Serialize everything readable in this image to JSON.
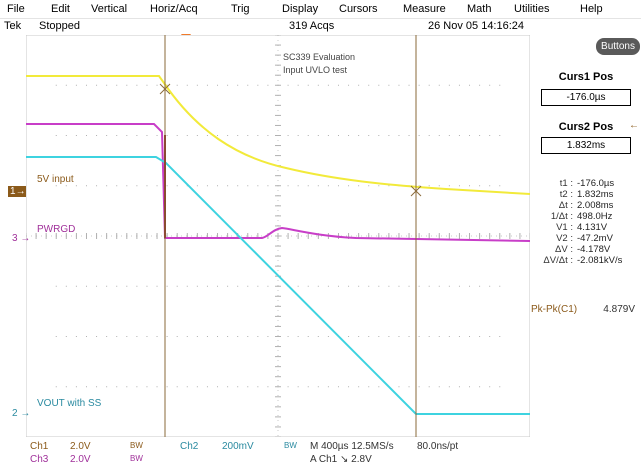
{
  "menu": [
    "File",
    "Edit",
    "Vertical",
    "Horiz/Acq",
    "Trig",
    "Display",
    "Cursors",
    "Measure",
    "Math",
    "Utilities",
    "Help"
  ],
  "status": {
    "brand": "Tek",
    "state": "Stopped",
    "acqs": "319 Acqs",
    "datetime": "26 Nov 05  14:16:24"
  },
  "annotation": {
    "line1": "SC339 Evaluation",
    "line2": "Input UVLO test"
  },
  "channel_tags": {
    "ch1": "1",
    "ch3": "3",
    "ch2": "2"
  },
  "wave_labels": {
    "ch1": "5V input",
    "ch3": "PWRGD",
    "ch2": "VOUT with SS"
  },
  "buttons_label": "Buttons",
  "cursors": {
    "curs1_title": "Curs1 Pos",
    "curs1_value": "-176.0µs",
    "curs2_title": "Curs2 Pos",
    "curs2_value": "1.832ms"
  },
  "measurements": [
    {
      "label": "t1 :",
      "value": "-176.0µs"
    },
    {
      "label": "t2 :",
      "value": "1.832ms"
    },
    {
      "label": "Δt :",
      "value": "2.008ms"
    },
    {
      "label": "1/Δt :",
      "value": "498.0Hz"
    },
    {
      "label": "V1 :",
      "value": "4.131V"
    },
    {
      "label": "V2 :",
      "value": "-47.2mV"
    },
    {
      "label": "ΔV :",
      "value": "-4.178V"
    },
    {
      "label": "ΔV/Δt :",
      "value": "-2.081kV/s"
    }
  ],
  "pkpk": {
    "label": "Pk-Pk(C1)",
    "value": "4.879V"
  },
  "bottom": {
    "ch1_name": "Ch1",
    "ch1_scale": "2.0V",
    "ch1_bw": "BW",
    "ch3_name": "Ch3",
    "ch3_scale": "2.0V",
    "ch3_bw": "BW",
    "ch2_name": "Ch2",
    "ch2_scale": "200mV",
    "ch2_bw": "BW",
    "timebase": "M 400µs 12.5MS/s",
    "resolution": "80.0ns/pt",
    "trigger": "A  Ch1  ↘  2.8V"
  },
  "colors": {
    "ch1": "#f2ea3a",
    "ch2": "#3ed3e0",
    "ch3": "#c83ec8",
    "cursor": "#8a6a3a",
    "ch1_label": "#8b5a1a"
  }
}
